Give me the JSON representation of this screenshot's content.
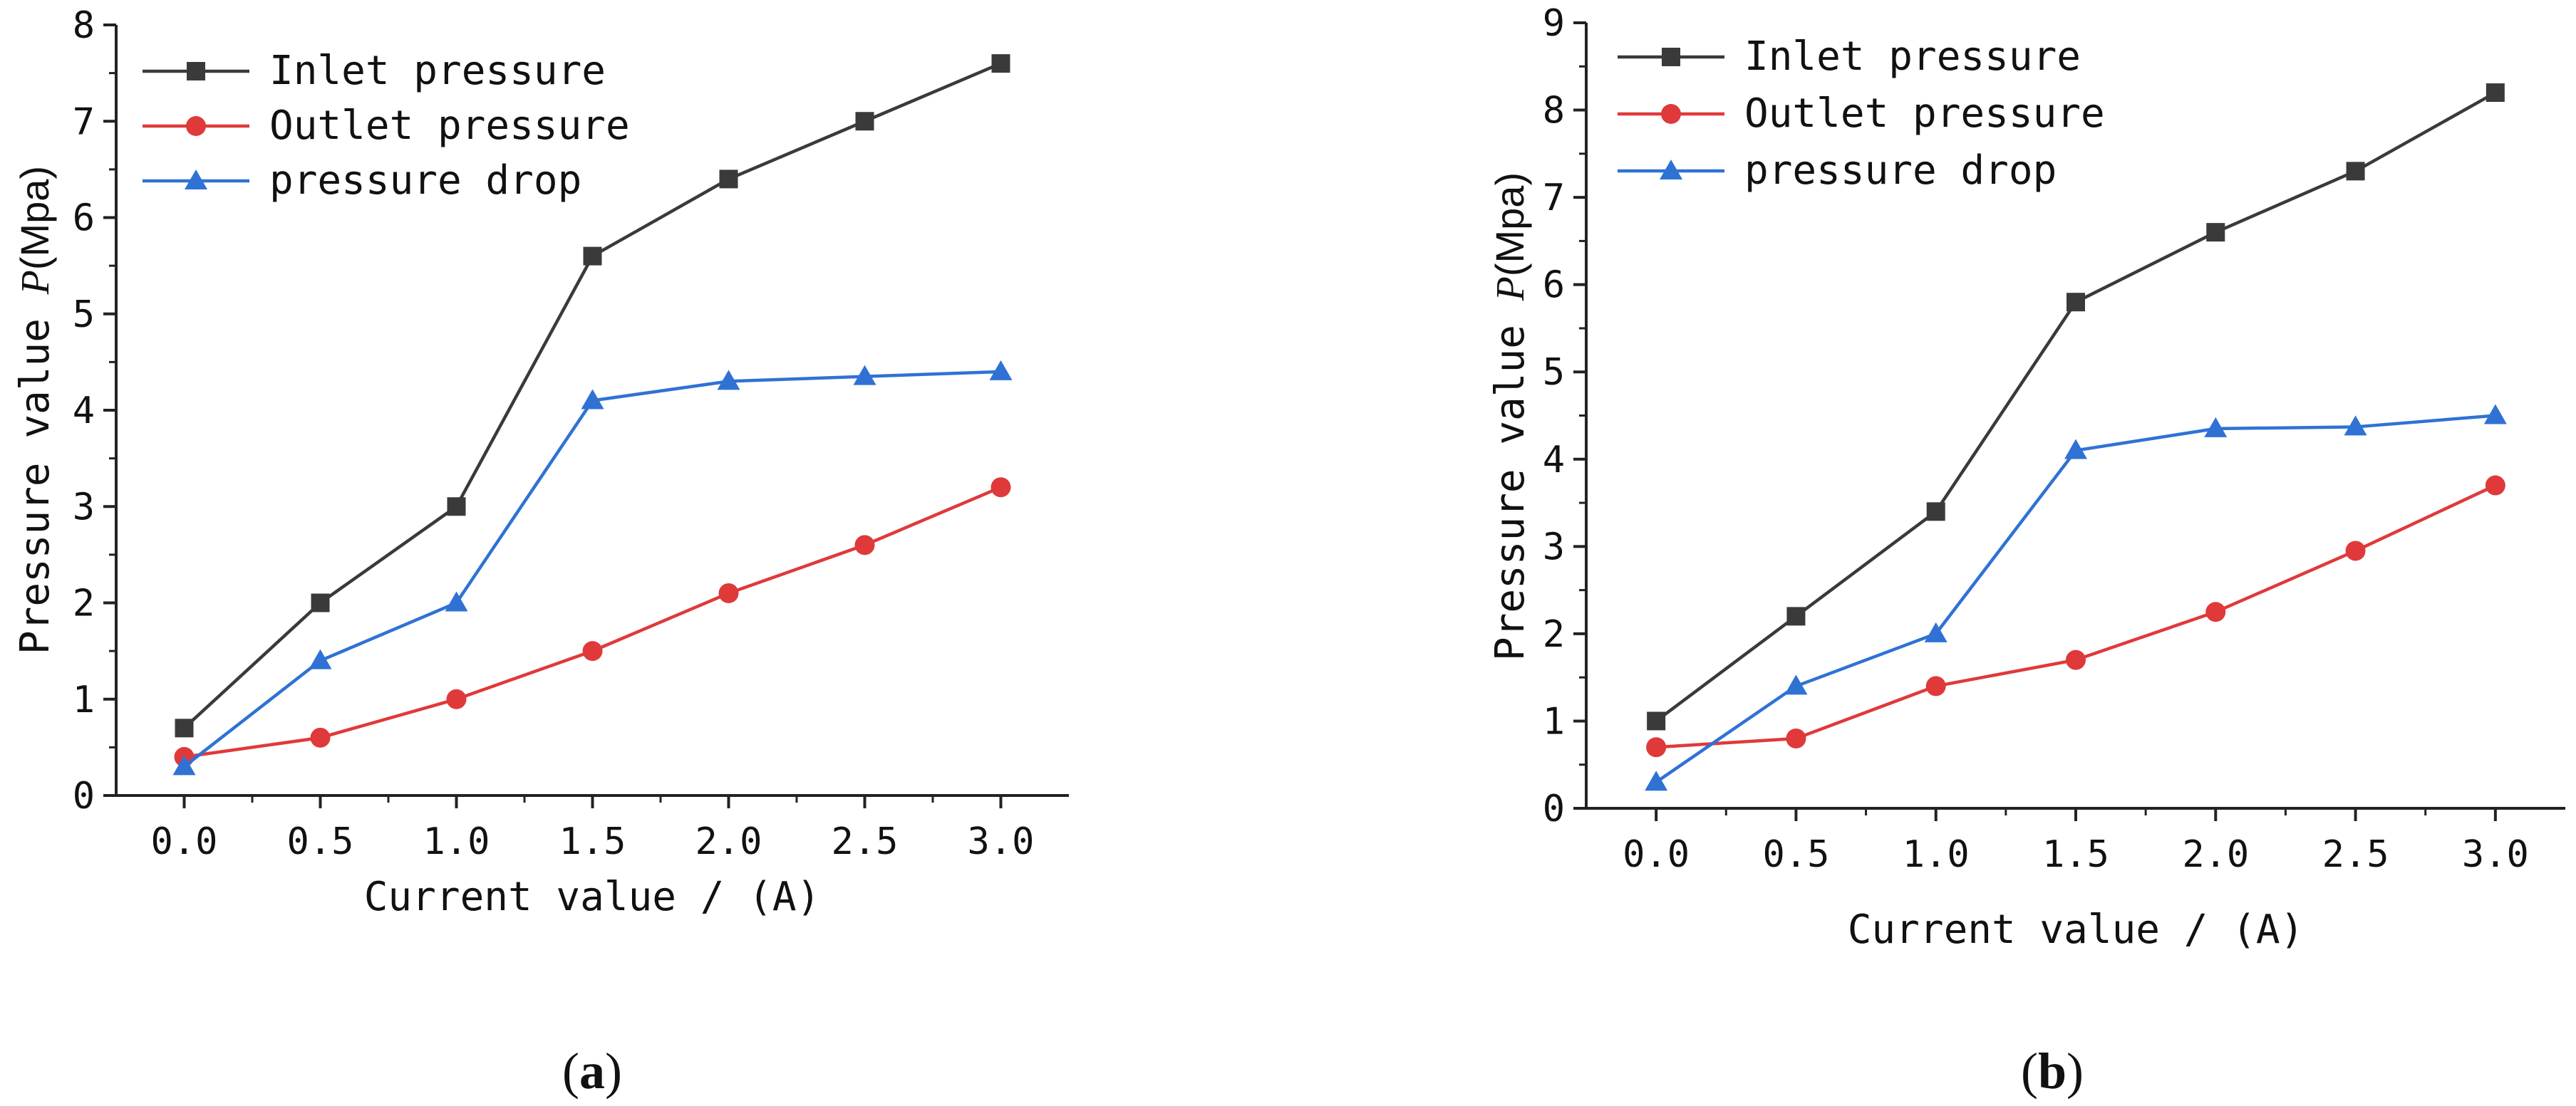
{
  "chart_data": [
    {
      "type": "line",
      "panel": "a",
      "panel_label_bold": "a",
      "xlabel": "Current value / (A)",
      "ylabel_prefix": "Pressure value ",
      "ylabel_var": "P",
      "ylabel_unit": "(Mpa)",
      "x": [
        0.0,
        0.5,
        1.0,
        1.5,
        2.0,
        2.5,
        3.0
      ],
      "x_ticks": [
        "0.0",
        "0.5",
        "1.0",
        "1.5",
        "2.0",
        "2.5",
        "3.0"
      ],
      "y_ticks": [
        "0",
        "1",
        "2",
        "3",
        "4",
        "5",
        "6",
        "7",
        "8"
      ],
      "xlim": [
        -0.25,
        3.25
      ],
      "ylim": [
        0,
        8
      ],
      "legend_position": "top-left",
      "series": [
        {
          "name": "Inlet pressure",
          "color": "#3a3a3a",
          "marker": "square",
          "values": [
            0.7,
            2.0,
            3.0,
            5.6,
            6.4,
            7.0,
            7.6
          ]
        },
        {
          "name": "Outlet pressure",
          "color": "#e0393a",
          "marker": "circle",
          "values": [
            0.4,
            0.6,
            1.0,
            1.5,
            2.1,
            2.6,
            3.2
          ]
        },
        {
          "name": "pressure drop",
          "color": "#2f72d4",
          "marker": "triangle",
          "values": [
            0.3,
            1.4,
            2.0,
            4.1,
            4.3,
            4.35,
            4.4
          ]
        }
      ]
    },
    {
      "type": "line",
      "panel": "b",
      "panel_label_bold": "b",
      "xlabel": "Current value / (A)",
      "ylabel_prefix": "Pressure value ",
      "ylabel_var": "P",
      "ylabel_unit": "(Mpa)",
      "x": [
        0.0,
        0.5,
        1.0,
        1.5,
        2.0,
        2.5,
        3.0
      ],
      "x_ticks": [
        "0.0",
        "0.5",
        "1.0",
        "1.5",
        "2.0",
        "2.5",
        "3.0"
      ],
      "y_ticks": [
        "0",
        "1",
        "2",
        "3",
        "4",
        "5",
        "6",
        "7",
        "8",
        "9"
      ],
      "xlim": [
        -0.25,
        3.25
      ],
      "ylim": [
        0,
        9
      ],
      "legend_position": "top-left",
      "series": [
        {
          "name": "Inlet pressure",
          "color": "#3a3a3a",
          "marker": "square",
          "values": [
            1.0,
            2.2,
            3.4,
            5.8,
            6.6,
            7.3,
            8.2
          ]
        },
        {
          "name": "Outlet pressure",
          "color": "#e0393a",
          "marker": "circle",
          "values": [
            0.7,
            0.8,
            1.4,
            1.7,
            2.25,
            2.95,
            3.7
          ]
        },
        {
          "name": "pressure drop",
          "color": "#2f72d4",
          "marker": "triangle",
          "values": [
            0.3,
            1.4,
            2.0,
            4.1,
            4.35,
            4.37,
            4.5
          ]
        }
      ]
    }
  ]
}
